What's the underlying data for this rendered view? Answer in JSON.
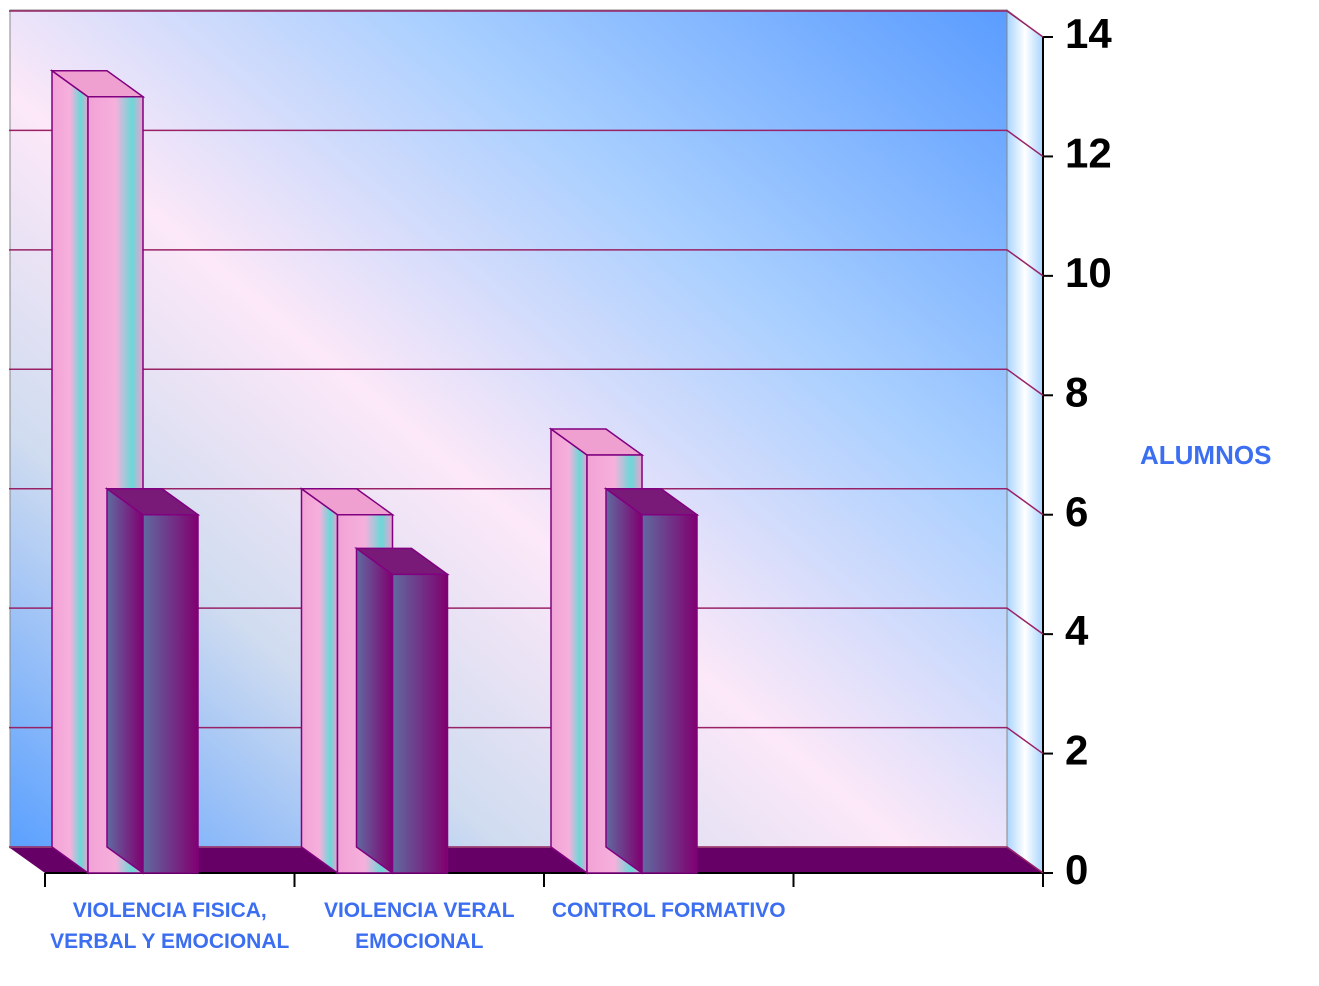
{
  "chart_data": {
    "type": "bar3d",
    "categories": [
      "VIOLENCIA FISICA, VERBAL Y EMOCIONAL",
      "VIOLENCIA VERAL EMOCIONAL",
      "CONTROL FORMATIVO",
      null
    ],
    "series": [
      {
        "color": "#f0a0d0",
        "values": [
          13,
          6,
          7,
          null
        ]
      },
      {
        "color": "#7a1a78",
        "values": [
          6,
          5,
          6,
          null
        ]
      }
    ],
    "y_label": "ALUMNOS",
    "ylim": [
      0,
      14
    ],
    "yticks": [
      0,
      2,
      4,
      6,
      8,
      10,
      12,
      14
    ],
    "grid": true
  }
}
